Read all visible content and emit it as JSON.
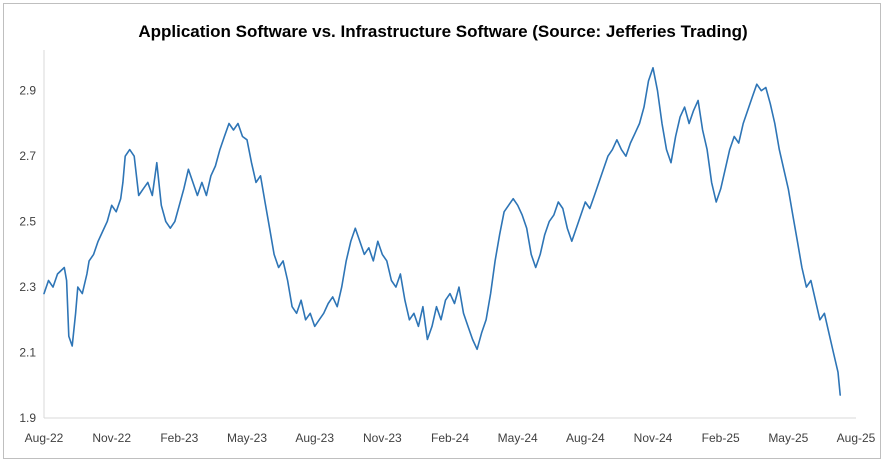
{
  "chart_data": {
    "type": "line",
    "title": "Application Software vs. Infrastructure Software (Source: Jefferies Trading)",
    "xlabel": "",
    "ylabel": "",
    "ylim": [
      1.9,
      3.0
    ],
    "yticks": [
      "1.9",
      "2.1",
      "2.3",
      "2.5",
      "2.7",
      "2.9"
    ],
    "ytick_values": [
      1.9,
      2.1,
      2.3,
      2.5,
      2.7,
      2.9
    ],
    "xticks": [
      "Aug-22",
      "Nov-22",
      "Feb-23",
      "May-23",
      "Aug-23",
      "Nov-23",
      "Feb-24",
      "May-24",
      "Aug-24",
      "Nov-24",
      "Feb-25",
      "May-25",
      "Aug-25"
    ],
    "x_range_months": [
      0,
      36
    ],
    "grid": false,
    "legend": "none",
    "line_color": "#2E75B6",
    "series": [
      {
        "name": "Application Software vs. Infrastructure Software",
        "points": [
          [
            0.0,
            2.28
          ],
          [
            0.2,
            2.32
          ],
          [
            0.4,
            2.3
          ],
          [
            0.6,
            2.34
          ],
          [
            0.9,
            2.36
          ],
          [
            1.0,
            2.32
          ],
          [
            1.1,
            2.15
          ],
          [
            1.25,
            2.12
          ],
          [
            1.4,
            2.22
          ],
          [
            1.5,
            2.3
          ],
          [
            1.7,
            2.28
          ],
          [
            1.9,
            2.34
          ],
          [
            2.0,
            2.38
          ],
          [
            2.2,
            2.4
          ],
          [
            2.4,
            2.44
          ],
          [
            2.6,
            2.47
          ],
          [
            2.8,
            2.5
          ],
          [
            3.0,
            2.55
          ],
          [
            3.2,
            2.53
          ],
          [
            3.4,
            2.57
          ],
          [
            3.5,
            2.62
          ],
          [
            3.6,
            2.7
          ],
          [
            3.8,
            2.72
          ],
          [
            4.0,
            2.7
          ],
          [
            4.2,
            2.58
          ],
          [
            4.4,
            2.6
          ],
          [
            4.6,
            2.62
          ],
          [
            4.8,
            2.58
          ],
          [
            5.0,
            2.68
          ],
          [
            5.2,
            2.55
          ],
          [
            5.4,
            2.5
          ],
          [
            5.6,
            2.48
          ],
          [
            5.8,
            2.5
          ],
          [
            6.0,
            2.55
          ],
          [
            6.2,
            2.6
          ],
          [
            6.4,
            2.66
          ],
          [
            6.6,
            2.62
          ],
          [
            6.8,
            2.58
          ],
          [
            7.0,
            2.62
          ],
          [
            7.2,
            2.58
          ],
          [
            7.4,
            2.64
          ],
          [
            7.6,
            2.67
          ],
          [
            7.8,
            2.72
          ],
          [
            8.0,
            2.76
          ],
          [
            8.2,
            2.8
          ],
          [
            8.4,
            2.78
          ],
          [
            8.6,
            2.8
          ],
          [
            8.8,
            2.76
          ],
          [
            9.0,
            2.75
          ],
          [
            9.2,
            2.68
          ],
          [
            9.4,
            2.62
          ],
          [
            9.6,
            2.64
          ],
          [
            9.8,
            2.56
          ],
          [
            10.0,
            2.48
          ],
          [
            10.2,
            2.4
          ],
          [
            10.4,
            2.36
          ],
          [
            10.6,
            2.38
          ],
          [
            10.8,
            2.32
          ],
          [
            11.0,
            2.24
          ],
          [
            11.2,
            2.22
          ],
          [
            11.4,
            2.26
          ],
          [
            11.6,
            2.2
          ],
          [
            11.8,
            2.22
          ],
          [
            12.0,
            2.18
          ],
          [
            12.2,
            2.2
          ],
          [
            12.4,
            2.22
          ],
          [
            12.6,
            2.25
          ],
          [
            12.8,
            2.27
          ],
          [
            13.0,
            2.24
          ],
          [
            13.2,
            2.3
          ],
          [
            13.4,
            2.38
          ],
          [
            13.6,
            2.44
          ],
          [
            13.8,
            2.48
          ],
          [
            14.0,
            2.44
          ],
          [
            14.2,
            2.4
          ],
          [
            14.4,
            2.42
          ],
          [
            14.6,
            2.38
          ],
          [
            14.8,
            2.44
          ],
          [
            15.0,
            2.4
          ],
          [
            15.2,
            2.38
          ],
          [
            15.4,
            2.32
          ],
          [
            15.6,
            2.3
          ],
          [
            15.8,
            2.34
          ],
          [
            16.0,
            2.26
          ],
          [
            16.2,
            2.2
          ],
          [
            16.4,
            2.22
          ],
          [
            16.6,
            2.18
          ],
          [
            16.8,
            2.24
          ],
          [
            17.0,
            2.14
          ],
          [
            17.2,
            2.18
          ],
          [
            17.4,
            2.24
          ],
          [
            17.6,
            2.2
          ],
          [
            17.8,
            2.26
          ],
          [
            18.0,
            2.28
          ],
          [
            18.2,
            2.25
          ],
          [
            18.4,
            2.3
          ],
          [
            18.6,
            2.22
          ],
          [
            18.8,
            2.18
          ],
          [
            19.0,
            2.14
          ],
          [
            19.2,
            2.11
          ],
          [
            19.4,
            2.16
          ],
          [
            19.6,
            2.2
          ],
          [
            19.8,
            2.28
          ],
          [
            20.0,
            2.38
          ],
          [
            20.2,
            2.46
          ],
          [
            20.4,
            2.53
          ],
          [
            20.6,
            2.55
          ],
          [
            20.8,
            2.57
          ],
          [
            21.0,
            2.55
          ],
          [
            21.2,
            2.52
          ],
          [
            21.4,
            2.48
          ],
          [
            21.6,
            2.4
          ],
          [
            21.8,
            2.36
          ],
          [
            22.0,
            2.4
          ],
          [
            22.2,
            2.46
          ],
          [
            22.4,
            2.5
          ],
          [
            22.6,
            2.52
          ],
          [
            22.8,
            2.56
          ],
          [
            23.0,
            2.54
          ],
          [
            23.2,
            2.48
          ],
          [
            23.4,
            2.44
          ],
          [
            23.6,
            2.48
          ],
          [
            23.8,
            2.52
          ],
          [
            24.0,
            2.56
          ],
          [
            24.2,
            2.54
          ],
          [
            24.4,
            2.58
          ],
          [
            24.6,
            2.62
          ],
          [
            24.8,
            2.66
          ],
          [
            25.0,
            2.7
          ],
          [
            25.2,
            2.72
          ],
          [
            25.4,
            2.75
          ],
          [
            25.6,
            2.72
          ],
          [
            25.8,
            2.7
          ],
          [
            26.0,
            2.74
          ],
          [
            26.2,
            2.77
          ],
          [
            26.4,
            2.8
          ],
          [
            26.6,
            2.85
          ],
          [
            26.8,
            2.93
          ],
          [
            27.0,
            2.97
          ],
          [
            27.2,
            2.9
          ],
          [
            27.4,
            2.8
          ],
          [
            27.6,
            2.72
          ],
          [
            27.8,
            2.68
          ],
          [
            28.0,
            2.76
          ],
          [
            28.2,
            2.82
          ],
          [
            28.4,
            2.85
          ],
          [
            28.6,
            2.8
          ],
          [
            28.8,
            2.84
          ],
          [
            29.0,
            2.87
          ],
          [
            29.2,
            2.78
          ],
          [
            29.4,
            2.72
          ],
          [
            29.6,
            2.62
          ],
          [
            29.8,
            2.56
          ],
          [
            30.0,
            2.6
          ],
          [
            30.2,
            2.66
          ],
          [
            30.4,
            2.72
          ],
          [
            30.6,
            2.76
          ],
          [
            30.8,
            2.74
          ],
          [
            31.0,
            2.8
          ],
          [
            31.2,
            2.84
          ],
          [
            31.4,
            2.88
          ],
          [
            31.6,
            2.92
          ],
          [
            31.8,
            2.9
          ],
          [
            32.0,
            2.91
          ],
          [
            32.2,
            2.86
          ],
          [
            32.4,
            2.8
          ],
          [
            32.6,
            2.72
          ],
          [
            32.8,
            2.66
          ],
          [
            33.0,
            2.6
          ],
          [
            33.2,
            2.52
          ],
          [
            33.4,
            2.44
          ],
          [
            33.6,
            2.36
          ],
          [
            33.8,
            2.3
          ],
          [
            34.0,
            2.32
          ],
          [
            34.2,
            2.26
          ],
          [
            34.4,
            2.2
          ],
          [
            34.6,
            2.22
          ],
          [
            34.8,
            2.16
          ],
          [
            35.0,
            2.1
          ],
          [
            35.2,
            2.04
          ],
          [
            35.3,
            1.97
          ]
        ]
      }
    ]
  }
}
